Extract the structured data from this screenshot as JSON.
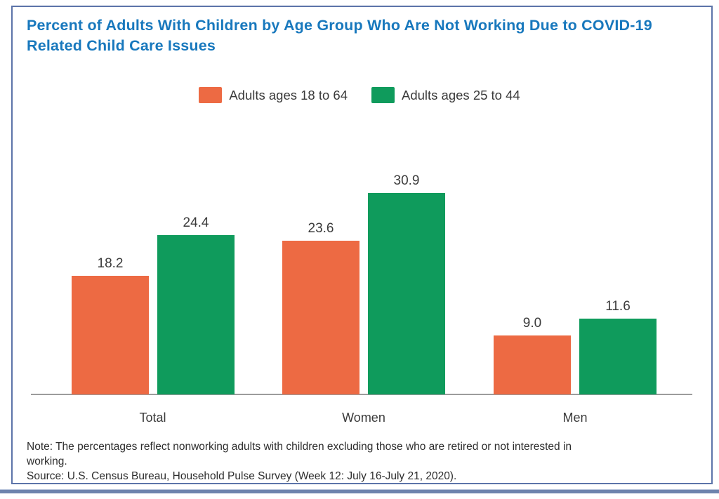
{
  "colors": {
    "title_blue": "#1878BD",
    "card_border_blue": "#5C74A9",
    "axis_gray": "#9c9c9c",
    "label_dark_gray": "#3a3a3a",
    "bottom_bar_blue": "#6E84AD",
    "series_orange": "#ED6A43",
    "series_green": "#0F9B5C"
  },
  "chart_data": {
    "type": "bar",
    "title": "Percent of Adults With Children by Age Group Who Are Not Working Due to COVID-19 Related Child Care Issues",
    "categories": [
      "Total",
      "Women",
      "Men"
    ],
    "series": [
      {
        "name": "Adults ages 18 to 64",
        "color": "#ED6A43",
        "values": [
          18.2,
          23.6,
          9.0
        ]
      },
      {
        "name": "Adults ages 25 to 44",
        "color": "#0F9B5C",
        "values": [
          24.4,
          30.9,
          11.6
        ]
      }
    ],
    "value_label_format": "one_decimal",
    "xlabel": "",
    "ylabel": "",
    "ylim": [
      0,
      35
    ],
    "grid": false,
    "y_axis_visible": false,
    "legend_position": "top-center"
  },
  "footnotes": {
    "note": "Note: The percentages reflect nonworking adults with children excluding those who are retired or not interested in working.",
    "source": "Source: U.S. Census Bureau, Household Pulse Survey (Week 12: July 16-July 21, 2020)."
  }
}
